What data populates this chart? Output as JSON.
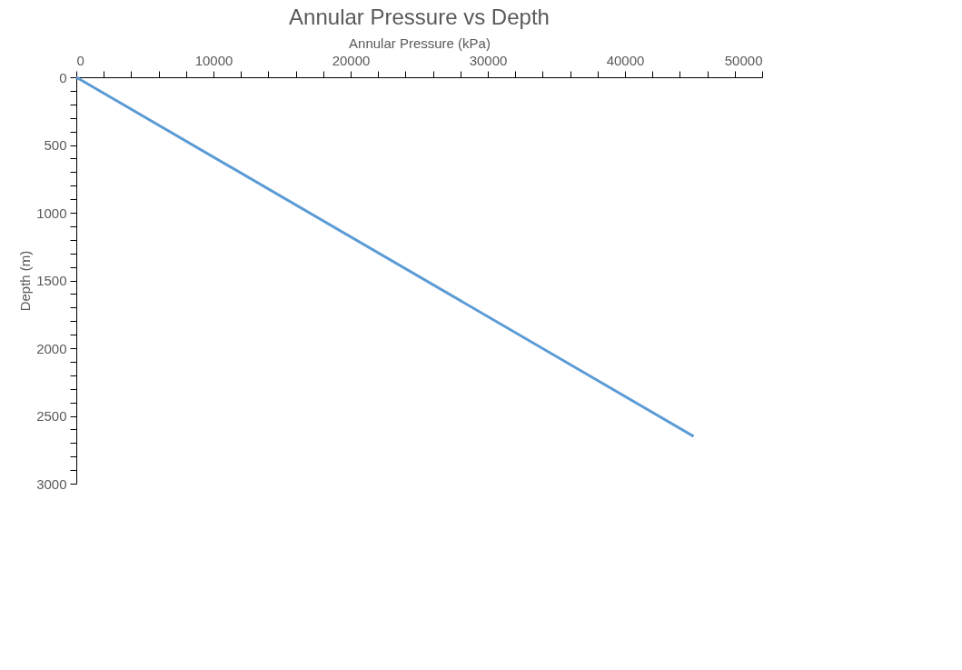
{
  "chart_data": {
    "type": "line",
    "title": "Annular Pressure vs Depth",
    "xlabel": "Annular Pressure (kPa)",
    "ylabel": "Depth (m)",
    "x": [
      0,
      45000
    ],
    "series": [
      {
        "color": "#5b9bd5",
        "values": [
          0,
          2650
        ]
      }
    ],
    "xlim": [
      0,
      50000
    ],
    "ylim": [
      3000,
      0
    ],
    "xticks": [
      0,
      {
        "value": 2000,
        "label": null
      },
      {
        "value": 4000,
        "label": null
      },
      {
        "value": 6000,
        "label": null
      },
      {
        "value": 8000,
        "label": null
      },
      10000,
      {
        "value": 12000,
        "label": null
      },
      {
        "value": 14000,
        "label": null
      },
      {
        "value": 16000,
        "label": null
      },
      {
        "value": 18000,
        "label": null
      },
      20000,
      {
        "value": 22000,
        "label": null
      },
      {
        "value": 24000,
        "label": null
      },
      {
        "value": 26000,
        "label": null
      },
      {
        "value": 28000,
        "label": null
      },
      30000,
      {
        "value": 32000,
        "label": null
      },
      {
        "value": 34000,
        "label": null
      },
      {
        "value": 36000,
        "label": null
      },
      {
        "value": 38000,
        "label": null
      },
      40000,
      {
        "value": 42000,
        "label": null
      },
      {
        "value": 44000,
        "label": null
      },
      {
        "value": 46000,
        "label": null
      },
      {
        "value": 48000,
        "label": null
      },
      50000
    ],
    "yticks": [
      0,
      {
        "value": 100,
        "label": null
      },
      {
        "value": 200,
        "label": null
      },
      {
        "value": 300,
        "label": null
      },
      {
        "value": 400,
        "label": null
      },
      500,
      {
        "value": 600,
        "label": null
      },
      {
        "value": 700,
        "label": null
      },
      {
        "value": 800,
        "label": null
      },
      {
        "value": 900,
        "label": null
      },
      1000,
      {
        "value": 1100,
        "label": null
      },
      {
        "value": 1200,
        "label": null
      },
      {
        "value": 1300,
        "label": null
      },
      {
        "value": 1400,
        "label": null
      },
      1500,
      {
        "value": 1600,
        "label": null
      },
      {
        "value": 1700,
        "label": null
      },
      {
        "value": 1800,
        "label": null
      },
      {
        "value": 1900,
        "label": null
      },
      2000,
      {
        "value": 2100,
        "label": null
      },
      {
        "value": 2200,
        "label": null
      },
      {
        "value": 2300,
        "label": null
      },
      {
        "value": 2400,
        "label": null
      },
      2500,
      {
        "value": 2600,
        "label": null
      },
      {
        "value": 2700,
        "label": null
      },
      {
        "value": 2800,
        "label": null
      },
      {
        "value": 2900,
        "label": null
      },
      3000
    ],
    "grid": false,
    "marker": "none",
    "line_style": "solid"
  }
}
